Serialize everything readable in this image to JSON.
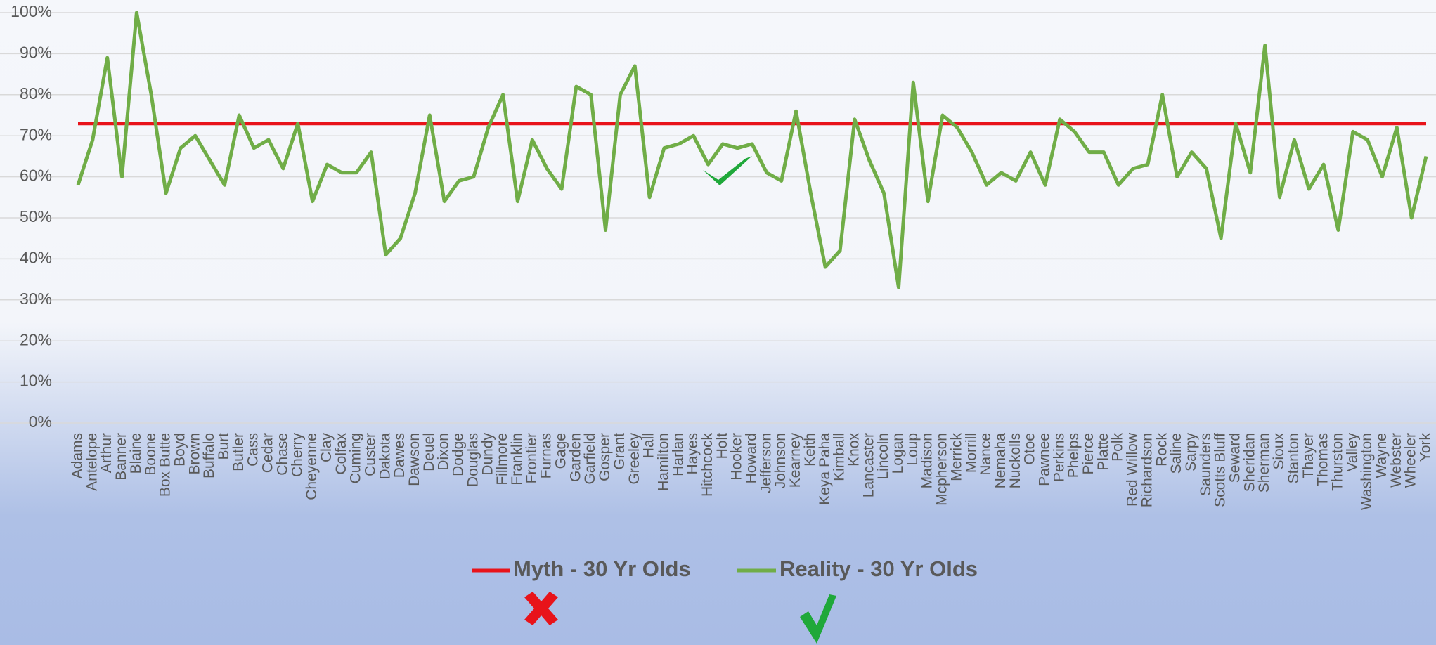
{
  "chart_data": {
    "type": "line",
    "categories": [
      "Adams",
      "Antelope",
      "Arthur",
      "Banner",
      "Blaine",
      "Boone",
      "Box Butte",
      "Boyd",
      "Brown",
      "Buffalo",
      "Burt",
      "Butler",
      "Cass",
      "Cedar",
      "Chase",
      "Cherry",
      "Cheyenne",
      "Clay",
      "Colfax",
      "Cuming",
      "Custer",
      "Dakota",
      "Dawes",
      "Dawson",
      "Deuel",
      "Dixon",
      "Dodge",
      "Douglas",
      "Dundy",
      "Fillmore",
      "Franklin",
      "Frontier",
      "Furnas",
      "Gage",
      "Garden",
      "Garfield",
      "Gosper",
      "Grant",
      "Greeley",
      "Hall",
      "Hamilton",
      "Harlan",
      "Hayes",
      "Hitchcock",
      "Holt",
      "Hooker",
      "Howard",
      "Jefferson",
      "Johnson",
      "Kearney",
      "Keith",
      "Keya Paha",
      "Kimball",
      "Knox",
      "Lancaster",
      "Lincoln",
      "Logan",
      "Loup",
      "Madison",
      "Mcpherson",
      "Merrick",
      "Morrill",
      "Nance",
      "Nemaha",
      "Nuckolls",
      "Otoe",
      "Pawnee",
      "Perkins",
      "Phelps",
      "Pierce",
      "Platte",
      "Polk",
      "Red Willow",
      "Richardson",
      "Rock",
      "Saline",
      "Sarpy",
      "Saunders",
      "Scotts Bluff",
      "Seward",
      "Sheridan",
      "Sherman",
      "Sioux",
      "Stanton",
      "Thayer",
      "Thomas",
      "Thurston",
      "Valley",
      "Washington",
      "Wayne",
      "Webster",
      "Wheeler",
      "York"
    ],
    "series": [
      {
        "name": "Myth - 30 Yr Olds",
        "color": "#e8131a",
        "values": [
          73,
          73,
          73,
          73,
          73,
          73,
          73,
          73,
          73,
          73,
          73,
          73,
          73,
          73,
          73,
          73,
          73,
          73,
          73,
          73,
          73,
          73,
          73,
          73,
          73,
          73,
          73,
          73,
          73,
          73,
          73,
          73,
          73,
          73,
          73,
          73,
          73,
          73,
          73,
          73,
          73,
          73,
          73,
          73,
          73,
          73,
          73,
          73,
          73,
          73,
          73,
          73,
          73,
          73,
          73,
          73,
          73,
          73,
          73,
          73,
          73,
          73,
          73,
          73,
          73,
          73,
          73,
          73,
          73,
          73,
          73,
          73,
          73,
          73,
          73,
          73,
          73,
          73,
          73,
          73,
          73,
          73,
          73,
          73,
          73,
          73,
          73,
          73,
          73,
          73,
          73,
          73,
          73
        ]
      },
      {
        "name": "Reality - 30 Yr Olds",
        "color": "#70ad47",
        "values": [
          58,
          69,
          89,
          60,
          100,
          80,
          56,
          67,
          70,
          64,
          58,
          75,
          67,
          69,
          62,
          73,
          54,
          63,
          61,
          61,
          66,
          41,
          45,
          56,
          75,
          54,
          59,
          60,
          72,
          80,
          54,
          69,
          62,
          57,
          82,
          80,
          47,
          80,
          87,
          55,
          67,
          68,
          70,
          63,
          68,
          67,
          68,
          61,
          59,
          76,
          56,
          38,
          42,
          74,
          64,
          56,
          33,
          83,
          54,
          75,
          72,
          66,
          58,
          61,
          59,
          66,
          58,
          74,
          71,
          66,
          66,
          58,
          62,
          63,
          80,
          60,
          66,
          62,
          45,
          73,
          61,
          92,
          55,
          69,
          57,
          63,
          47,
          71,
          69,
          60,
          72,
          50,
          65
        ]
      }
    ],
    "ylim": [
      0,
      100
    ],
    "yticks": [
      {
        "value": 0,
        "label": "0%"
      },
      {
        "value": 10,
        "label": "10%"
      },
      {
        "value": 20,
        "label": "20%"
      },
      {
        "value": 30,
        "label": "30%"
      },
      {
        "value": 40,
        "label": "40%"
      },
      {
        "value": 50,
        "label": "50%"
      },
      {
        "value": 60,
        "label": "60%"
      },
      {
        "value": 70,
        "label": "70%"
      },
      {
        "value": 80,
        "label": "80%"
      },
      {
        "value": 90,
        "label": "90%"
      },
      {
        "value": 100,
        "label": "100%"
      }
    ],
    "grid": true
  }
}
